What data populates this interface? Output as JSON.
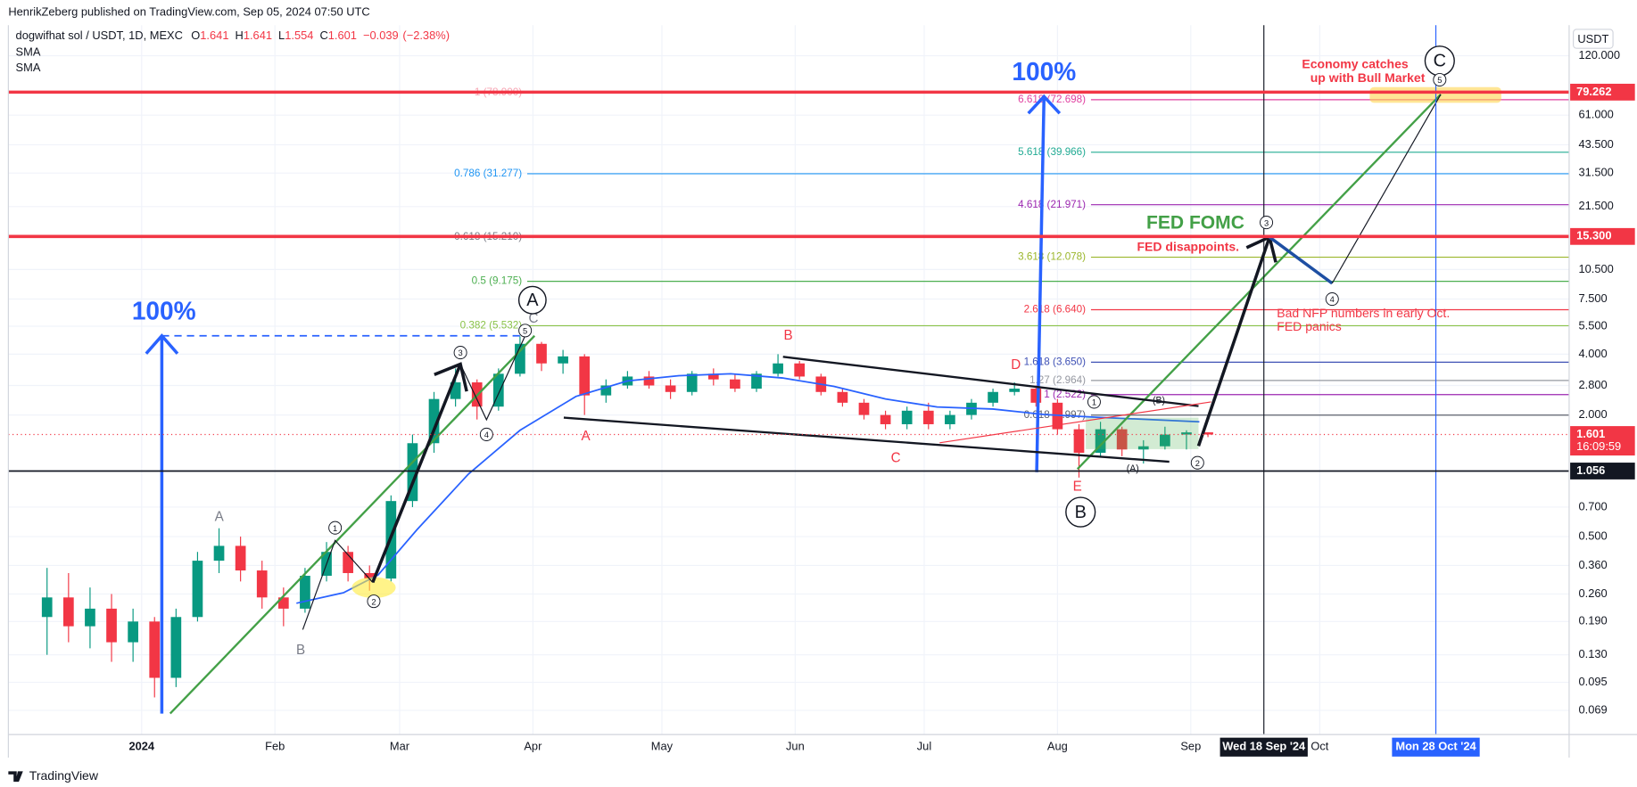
{
  "header": "HenrikZeberg published on TradingView.com, Sep 05, 2024 07:50 UTC",
  "footer": "TradingView",
  "chart_data": {
    "type": "candlestick",
    "symbol": "dogwifhat sol / USDT, 1D, MEXC",
    "ohlc_labels": [
      "O",
      "H",
      "L",
      "C"
    ],
    "change": {
      "value": -0.039,
      "label": "−0.039"
    },
    "change_pct": {
      "value": -2.38,
      "label": "(−2.38%)"
    },
    "colors": {
      "up": "#089981",
      "down": "#f23645"
    },
    "x": [
      "2023-12-10",
      "2023-12-15",
      "2023-12-20",
      "2023-12-25",
      "2023-12-30",
      "2024-01-04",
      "2024-01-09",
      "2024-01-14",
      "2024-01-19",
      "2024-01-24",
      "2024-01-29",
      "2024-02-03",
      "2024-02-08",
      "2024-02-13",
      "2024-02-18",
      "2024-02-23",
      "2024-02-28",
      "2024-03-04",
      "2024-03-09",
      "2024-03-14",
      "2024-03-19",
      "2024-03-24",
      "2024-03-29",
      "2024-04-03",
      "2024-04-08",
      "2024-04-13",
      "2024-04-18",
      "2024-04-23",
      "2024-04-28",
      "2024-05-03",
      "2024-05-08",
      "2024-05-13",
      "2024-05-18",
      "2024-05-23",
      "2024-05-28",
      "2024-06-02",
      "2024-06-07",
      "2024-06-12",
      "2024-06-17",
      "2024-06-22",
      "2024-06-27",
      "2024-07-02",
      "2024-07-07",
      "2024-07-12",
      "2024-07-17",
      "2024-07-22",
      "2024-07-27",
      "2024-08-01",
      "2024-08-06",
      "2024-08-11",
      "2024-08-16",
      "2024-08-21",
      "2024-08-26",
      "2024-08-31",
      "2024-09-05"
    ],
    "open": [
      0.2,
      0.25,
      0.18,
      0.22,
      0.15,
      0.19,
      0.1,
      0.2,
      0.38,
      0.45,
      0.34,
      0.25,
      0.22,
      0.32,
      0.42,
      0.33,
      0.31,
      0.75,
      1.45,
      2.4,
      2.9,
      2.2,
      3.2,
      4.5,
      3.6,
      3.9,
      2.5,
      2.8,
      3.1,
      2.8,
      2.6,
      3.2,
      3.0,
      2.7,
      3.2,
      3.6,
      3.1,
      2.6,
      2.3,
      2.0,
      1.8,
      2.1,
      1.8,
      2.0,
      2.3,
      2.6,
      2.7,
      2.3,
      1.7,
      1.3,
      1.7,
      1.35,
      1.4,
      1.6,
      1.641
    ],
    "high": [
      0.35,
      0.33,
      0.28,
      0.26,
      0.22,
      0.2,
      0.22,
      0.42,
      0.55,
      0.5,
      0.38,
      0.28,
      0.35,
      0.47,
      0.45,
      0.36,
      0.8,
      1.6,
      2.6,
      3.4,
      3.0,
      3.4,
      4.9,
      4.6,
      4.2,
      4.0,
      3.0,
      3.3,
      3.3,
      3.0,
      3.3,
      3.4,
      3.2,
      3.3,
      4.0,
      3.7,
      3.2,
      2.7,
      2.4,
      2.1,
      2.2,
      2.3,
      2.1,
      2.4,
      2.7,
      2.9,
      2.8,
      2.4,
      1.8,
      1.85,
      1.75,
      1.5,
      1.75,
      1.68,
      1.641
    ],
    "low": [
      0.13,
      0.15,
      0.14,
      0.12,
      0.12,
      0.08,
      0.09,
      0.19,
      0.33,
      0.3,
      0.22,
      0.18,
      0.21,
      0.3,
      0.3,
      0.27,
      0.3,
      0.7,
      1.3,
      2.2,
      1.9,
      2.1,
      3.1,
      3.3,
      3.2,
      2.0,
      2.3,
      2.7,
      2.7,
      2.4,
      2.5,
      2.8,
      2.6,
      2.6,
      3.1,
      3.0,
      2.5,
      2.2,
      1.9,
      1.7,
      1.7,
      1.7,
      1.7,
      1.9,
      2.2,
      2.5,
      2.2,
      1.6,
      0.98,
      1.25,
      1.25,
      1.15,
      1.35,
      1.35,
      1.554
    ],
    "close": [
      0.25,
      0.18,
      0.22,
      0.15,
      0.19,
      0.1,
      0.2,
      0.38,
      0.45,
      0.34,
      0.25,
      0.22,
      0.32,
      0.42,
      0.33,
      0.31,
      0.75,
      1.45,
      2.4,
      2.9,
      2.2,
      3.2,
      4.5,
      3.6,
      3.9,
      2.5,
      2.8,
      3.1,
      2.8,
      2.6,
      3.2,
      3.0,
      2.7,
      3.2,
      3.6,
      3.1,
      2.6,
      2.3,
      2.0,
      1.8,
      2.1,
      1.8,
      2.0,
      2.3,
      2.6,
      2.7,
      2.3,
      1.7,
      1.3,
      1.7,
      1.35,
      1.4,
      1.6,
      1.64,
      1.601
    ],
    "indicators": [
      {
        "name": "SMA",
        "color": "#2962ff",
        "x": [
          "2024-02-06",
          "2024-02-17",
          "2024-02-25",
          "2024-03-05",
          "2024-03-17",
          "2024-03-29",
          "2024-04-11",
          "2024-04-23",
          "2024-05-05",
          "2024-05-17",
          "2024-05-29",
          "2024-06-10",
          "2024-06-22",
          "2024-07-04",
          "2024-07-17",
          "2024-07-29",
          "2024-08-10",
          "2024-08-22",
          "2024-09-03"
        ],
        "values": [
          0.234,
          0.264,
          0.323,
          0.54,
          1.02,
          1.68,
          2.47,
          2.95,
          3.13,
          3.2,
          3.05,
          2.77,
          2.4,
          2.19,
          2.14,
          2.01,
          1.95,
          1.9,
          1.85
        ]
      },
      {
        "name": "SMA"
      }
    ],
    "xlim": [
      "2023-12-01",
      "2024-11-28"
    ],
    "xticks": [
      {
        "value": "2024-01-01",
        "label": "2024"
      },
      {
        "value": "2024-02-01",
        "label": "Feb"
      },
      {
        "value": "2024-03-01",
        "label": "Mar"
      },
      {
        "value": "2024-04-01",
        "label": "Apr"
      },
      {
        "value": "2024-05-01",
        "label": "May"
      },
      {
        "value": "2024-06-01",
        "label": "Jun"
      },
      {
        "value": "2024-07-01",
        "label": "Jul"
      },
      {
        "value": "2024-08-01",
        "label": "Aug"
      },
      {
        "value": "2024-09-01",
        "label": "Sep"
      },
      {
        "value": "2024-10-01",
        "label": "Oct"
      }
    ],
    "highlight_dates": [
      {
        "value": "2024-09-18",
        "label": "Wed 18 Sep '24",
        "color": "#131722"
      },
      {
        "value": "2024-10-28",
        "label": "Mon 28 Oct '24",
        "color": "#2962ff"
      }
    ],
    "ylim": [
      0.0524,
      170
    ],
    "log_scale": true,
    "grid": true,
    "axis_unit": "USDT",
    "yticks": [
      {
        "value": 120,
        "label": "120.000"
      },
      {
        "value": 61,
        "label": "61.000"
      },
      {
        "value": 43.5,
        "label": "43.500"
      },
      {
        "value": 31.5,
        "label": "31.500"
      },
      {
        "value": 21.5,
        "label": "21.500"
      },
      {
        "value": 10.5,
        "label": "10.500"
      },
      {
        "value": 7.5,
        "label": "7.500"
      },
      {
        "value": 5.5,
        "label": "5.500"
      },
      {
        "value": 4,
        "label": "4.000"
      },
      {
        "value": 2.8,
        "label": "2.800"
      },
      {
        "value": 2,
        "label": "2.000"
      },
      {
        "value": 0.7,
        "label": "0.700"
      },
      {
        "value": 0.5,
        "label": "0.500"
      },
      {
        "value": 0.36,
        "label": "0.360"
      },
      {
        "value": 0.26,
        "label": "0.260"
      },
      {
        "value": 0.19,
        "label": "0.190"
      },
      {
        "value": 0.13,
        "label": "0.130"
      },
      {
        "value": 0.095,
        "label": "0.095"
      },
      {
        "value": 0.069,
        "label": "0.069"
      }
    ],
    "levels": [
      {
        "value": 79.262,
        "color": "#f23645",
        "width": 3
      },
      {
        "value": 15.3,
        "label": "15.300",
        "color": "#f23645",
        "width": 3
      },
      {
        "value": 1.601,
        "color": "#f23645",
        "width": 1,
        "dotted": true
      },
      {
        "value": 1.056,
        "color": "#131722",
        "width": 1.5
      }
    ],
    "countdown": "16:09:59",
    "fib_left": [
      {
        "value": 78.9,
        "label": "1 (78.900)",
        "color": "#f7a6b4"
      },
      {
        "value": 31.277,
        "label": "0.786 (31.277)",
        "color": "#2196f3"
      },
      {
        "value": 15.21,
        "label": "0.618 (15.210)",
        "color": "#787b86"
      },
      {
        "value": 9.175,
        "label": "0.5 (9.175)",
        "color": "#4caf50"
      },
      {
        "value": 5.532,
        "label": "0.382 (5.532)",
        "color": "#8bc34a"
      }
    ],
    "fib_right": [
      {
        "value": 72.698,
        "label": "6.618 (72.698)",
        "color": "#e040a0"
      },
      {
        "value": 39.966,
        "label": "5.618 (39.966)",
        "color": "#22ab94"
      },
      {
        "value": 21.971,
        "label": "4.618 (21.971)",
        "color": "#9c27b0"
      },
      {
        "value": 12.078,
        "label": "3.618 (12.078)",
        "color": "#9bb62b"
      },
      {
        "value": 6.64,
        "label": "2.618 (6.640)",
        "color": "#f23645"
      },
      {
        "value": 3.65,
        "label": "1.618 (3.650)",
        "color": "#3f51b5"
      },
      {
        "value": 2.964,
        "label": "1.27 (2.964)",
        "color": "#9598a1"
      },
      {
        "value": 2.522,
        "label": "1 (2.522)",
        "color": "#9c27b0"
      },
      {
        "value": 1.997,
        "label": "0.618 (1.997)",
        "color": "#5d606b"
      }
    ],
    "annotations": [
      "100%",
      "100%",
      "FED FOMC",
      "FED disappoints.",
      "Economy catches",
      "up with Bull Market",
      "Bad NFP numbers in early Oct.",
      "FED panics",
      "A",
      "B",
      "C",
      "A",
      "B",
      "C",
      "D",
      "E",
      "(A)",
      "(B)"
    ],
    "wave_labels": [
      "A",
      "B",
      "C",
      "1",
      "2",
      "3",
      "4",
      "5",
      "1",
      "3",
      "4",
      "5",
      "2"
    ]
  }
}
